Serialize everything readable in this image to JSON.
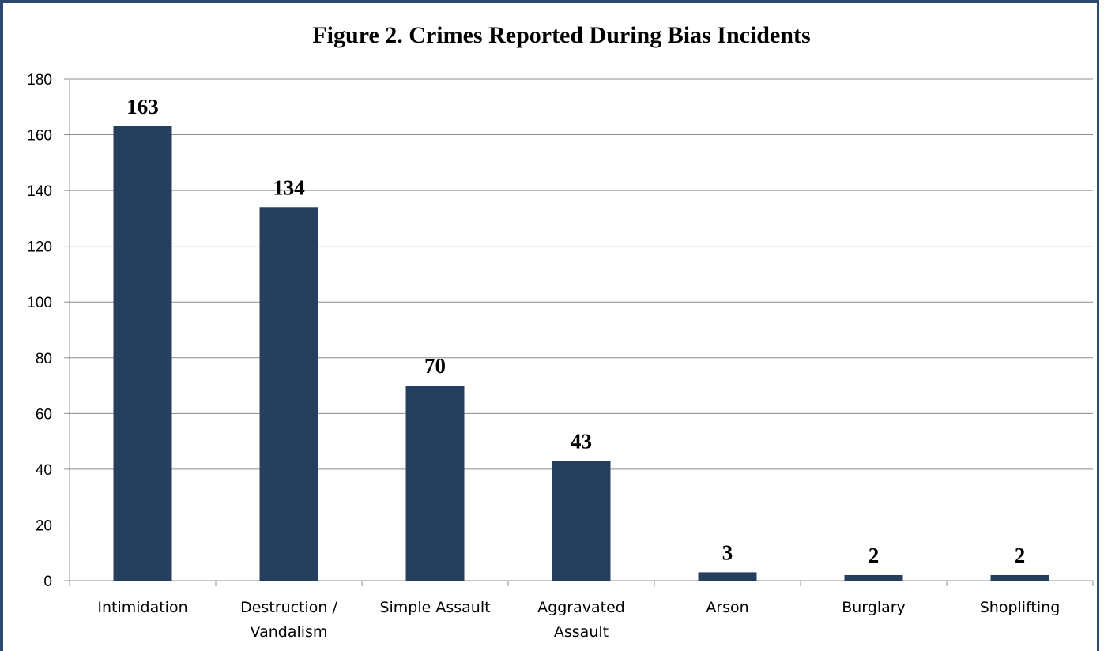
{
  "chart_data": {
    "type": "bar",
    "title": "Figure 2. Crimes Reported During Bias Incidents",
    "xlabel": "",
    "ylabel": "",
    "categories": [
      "Intimidation",
      "Destruction / Vandalism",
      "Simple Assault",
      "Aggravated Assault",
      "Arson",
      "Burglary",
      "Shoplifting"
    ],
    "category_lines": [
      [
        "Intimidation"
      ],
      [
        "Destruction /",
        "Vandalism"
      ],
      [
        "Simple Assault"
      ],
      [
        "Aggravated",
        "Assault"
      ],
      [
        "Arson"
      ],
      [
        "Burglary"
      ],
      [
        "Shoplifting"
      ]
    ],
    "values": [
      163,
      134,
      70,
      43,
      3,
      2,
      2
    ],
    "ylim": [
      0,
      180
    ],
    "yticks": [
      0,
      20,
      40,
      60,
      80,
      100,
      120,
      140,
      160,
      180
    ],
    "grid": true,
    "legend": "none",
    "bar_color": "#263f5f",
    "grid_color": "#8c8c8c"
  }
}
